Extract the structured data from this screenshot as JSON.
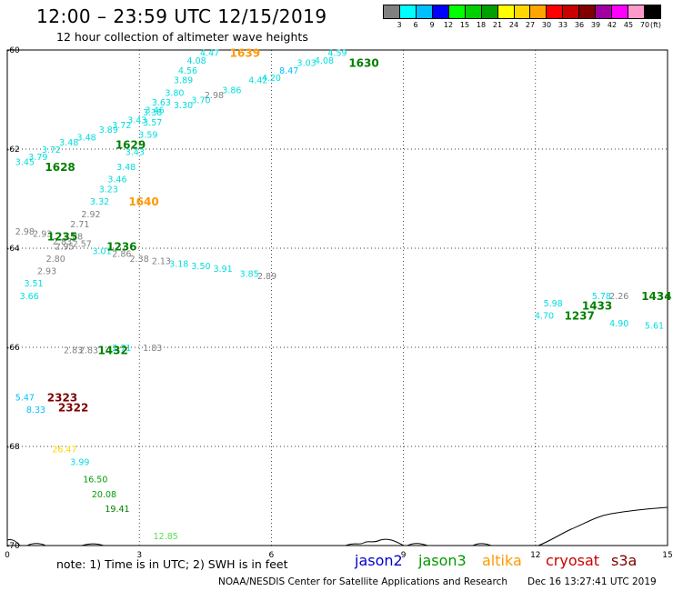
{
  "header": {
    "title": "12:00 – 23:59 UTC 12/15/2019",
    "subtitle": "12 hour collection of altimeter wave heights"
  },
  "legend": {
    "unit": "(ft)",
    "ticks": [
      "3",
      "6",
      "9",
      "12",
      "15",
      "18",
      "21",
      "24",
      "27",
      "30",
      "33",
      "36",
      "39",
      "42",
      "45",
      "70"
    ],
    "colors": [
      "#808080",
      "#00ffff",
      "#00bfff",
      "#0000ff",
      "#00ff00",
      "#00d000",
      "#00a000",
      "#ffff00",
      "#ffd700",
      "#ffa500",
      "#ff0000",
      "#c80000",
      "#800000",
      "#a000a0",
      "#ff00ff",
      "#ff99cc",
      "#000000"
    ]
  },
  "axes": {
    "x_ticks": [
      {
        "v": 0,
        "t": "0"
      },
      {
        "v": 3,
        "t": "3"
      },
      {
        "v": 6,
        "t": "6"
      },
      {
        "v": 9,
        "t": "9"
      },
      {
        "v": 12,
        "t": "12"
      },
      {
        "v": 15,
        "t": "15"
      }
    ],
    "y_ticks": [
      {
        "v": -60,
        "t": "-60"
      },
      {
        "v": -62,
        "t": "-62"
      },
      {
        "v": -64,
        "t": "-64"
      },
      {
        "v": -66,
        "t": "-66"
      },
      {
        "v": -68,
        "t": "-68"
      },
      {
        "v": -70,
        "t": "-70"
      }
    ],
    "x_range": [
      0,
      15
    ],
    "y_range": [
      -60,
      -70
    ]
  },
  "observations": [
    {
      "t": "4.47",
      "x": 4.6,
      "y": -60.05,
      "c": "#00dddd"
    },
    {
      "t": "4.08",
      "x": 4.3,
      "y": -60.2,
      "c": "#00dddd"
    },
    {
      "t": "4.56",
      "x": 4.1,
      "y": -60.4,
      "c": "#00dddd"
    },
    {
      "t": "3.89",
      "x": 4.0,
      "y": -60.6,
      "c": "#00dddd"
    },
    {
      "t": "3.80",
      "x": 3.8,
      "y": -60.85,
      "c": "#00dddd"
    },
    {
      "t": "3.63",
      "x": 3.5,
      "y": -61.05,
      "c": "#00dddd"
    },
    {
      "t": "3.30",
      "x": 4.0,
      "y": -61.1,
      "c": "#00dddd"
    },
    {
      "t": "3.70",
      "x": 4.4,
      "y": -61.0,
      "c": "#00dddd"
    },
    {
      "t": "2.98",
      "x": 4.7,
      "y": -60.9,
      "c": "#808080"
    },
    {
      "t": "3.86",
      "x": 5.1,
      "y": -60.8,
      "c": "#00dddd"
    },
    {
      "t": "4.42",
      "x": 5.7,
      "y": -60.6,
      "c": "#00dddd"
    },
    {
      "t": "4.20",
      "x": 6.0,
      "y": -60.55,
      "c": "#00dddd"
    },
    {
      "t": "8.47",
      "x": 6.4,
      "y": -60.4,
      "c": "#00bfff"
    },
    {
      "t": "3.03",
      "x": 6.8,
      "y": -60.25,
      "c": "#00dddd"
    },
    {
      "t": "4.08",
      "x": 7.2,
      "y": -60.2,
      "c": "#00dddd"
    },
    {
      "t": "4.59",
      "x": 7.5,
      "y": -60.05,
      "c": "#00dddd"
    },
    {
      "t": "3.38",
      "x": 3.3,
      "y": -61.25,
      "c": "#00dddd"
    },
    {
      "t": "3.46",
      "x": 3.35,
      "y": -61.2,
      "c": "#00dddd"
    },
    {
      "t": "3.43",
      "x": 2.95,
      "y": -61.4,
      "c": "#00dddd"
    },
    {
      "t": "3.57",
      "x": 3.3,
      "y": -61.45,
      "c": "#00dddd"
    },
    {
      "t": "3.72",
      "x": 2.6,
      "y": -61.5,
      "c": "#00dddd"
    },
    {
      "t": "3.89",
      "x": 2.3,
      "y": -61.6,
      "c": "#00dddd"
    },
    {
      "t": "3.59",
      "x": 3.2,
      "y": -61.7,
      "c": "#00dddd"
    },
    {
      "t": "3.48",
      "x": 1.8,
      "y": -61.75,
      "c": "#00dddd"
    },
    {
      "t": "3.48",
      "x": 1.4,
      "y": -61.85,
      "c": "#00dddd"
    },
    {
      "t": "3.72",
      "x": 1.0,
      "y": -62.0,
      "c": "#00dddd"
    },
    {
      "t": "3.79",
      "x": 0.7,
      "y": -62.15,
      "c": "#00dddd"
    },
    {
      "t": "3.45",
      "x": 0.4,
      "y": -62.25,
      "c": "#00dddd"
    },
    {
      "t": "3.43",
      "x": 2.9,
      "y": -62.05,
      "c": "#00dddd"
    },
    {
      "t": "3.48",
      "x": 2.7,
      "y": -62.35,
      "c": "#00dddd"
    },
    {
      "t": "3.46",
      "x": 2.5,
      "y": -62.6,
      "c": "#00dddd"
    },
    {
      "t": "3.23",
      "x": 2.3,
      "y": -62.8,
      "c": "#00dddd"
    },
    {
      "t": "3.32",
      "x": 2.1,
      "y": -63.05,
      "c": "#00dddd"
    },
    {
      "t": "2.92",
      "x": 1.9,
      "y": -63.3,
      "c": "#808080"
    },
    {
      "t": "2.71",
      "x": 1.65,
      "y": -63.5,
      "c": "#808080"
    },
    {
      "t": "2.98",
      "x": 0.4,
      "y": -63.65,
      "c": "#808080"
    },
    {
      "t": "2.93",
      "x": 0.8,
      "y": -63.7,
      "c": "#808080"
    },
    {
      "t": "2.88",
      "x": 1.5,
      "y": -63.75,
      "c": "#808080"
    },
    {
      "t": "2.83",
      "x": 1.25,
      "y": -63.85,
      "c": "#808080"
    },
    {
      "t": "2.57",
      "x": 1.7,
      "y": -63.9,
      "c": "#808080"
    },
    {
      "t": "2.95",
      "x": 1.3,
      "y": -63.95,
      "c": "#808080"
    },
    {
      "t": "3.01",
      "x": 2.15,
      "y": -64.05,
      "c": "#00dddd"
    },
    {
      "t": "2.86",
      "x": 2.6,
      "y": -64.1,
      "c": "#808080"
    },
    {
      "t": "2.80",
      "x": 1.1,
      "y": -64.2,
      "c": "#808080"
    },
    {
      "t": "2.38",
      "x": 3.0,
      "y": -64.2,
      "c": "#808080"
    },
    {
      "t": "2.13",
      "x": 3.5,
      "y": -64.25,
      "c": "#808080"
    },
    {
      "t": "3.18",
      "x": 3.9,
      "y": -64.3,
      "c": "#00dddd"
    },
    {
      "t": "3.50",
      "x": 4.4,
      "y": -64.35,
      "c": "#00dddd"
    },
    {
      "t": "3.91",
      "x": 4.9,
      "y": -64.4,
      "c": "#00dddd"
    },
    {
      "t": "3.85",
      "x": 5.5,
      "y": -64.5,
      "c": "#00dddd"
    },
    {
      "t": "2.89",
      "x": 5.9,
      "y": -64.55,
      "c": "#808080"
    },
    {
      "t": "2.93",
      "x": 0.9,
      "y": -64.45,
      "c": "#808080"
    },
    {
      "t": "3.51",
      "x": 0.6,
      "y": -64.7,
      "c": "#00dddd"
    },
    {
      "t": "3.66",
      "x": 0.5,
      "y": -64.95,
      "c": "#00dddd"
    },
    {
      "t": "2.83",
      "x": 1.5,
      "y": -66.05,
      "c": "#808080"
    },
    {
      "t": "2.83",
      "x": 1.85,
      "y": -66.05,
      "c": "#808080"
    },
    {
      "t": "2.71",
      "x": 2.6,
      "y": -66.0,
      "c": "#00dddd"
    },
    {
      "t": "1.83",
      "x": 3.3,
      "y": -66.0,
      "c": "#808080"
    },
    {
      "t": "5.47",
      "x": 0.4,
      "y": -67.0,
      "c": "#00bfff"
    },
    {
      "t": "8.33",
      "x": 0.65,
      "y": -67.25,
      "c": "#00bfff"
    },
    {
      "t": "26.47",
      "x": 1.3,
      "y": -68.05,
      "c": "#ffd700"
    },
    {
      "t": "3.99",
      "x": 1.65,
      "y": -68.3,
      "c": "#00dddd"
    },
    {
      "t": "16.50",
      "x": 2.0,
      "y": -68.65,
      "c": "#00a000"
    },
    {
      "t": "20.08",
      "x": 2.2,
      "y": -68.95,
      "c": "#00a000"
    },
    {
      "t": "19.41",
      "x": 2.5,
      "y": -69.25,
      "c": "#008000"
    },
    {
      "t": "12.85",
      "x": 3.6,
      "y": -69.8,
      "c": "#55dd55"
    },
    {
      "t": "5.98",
      "x": 12.4,
      "y": -65.1,
      "c": "#00dddd"
    },
    {
      "t": "4.70",
      "x": 12.2,
      "y": -65.35,
      "c": "#00dddd"
    },
    {
      "t": "5.78",
      "x": 13.5,
      "y": -64.95,
      "c": "#00dddd"
    },
    {
      "t": "2.26",
      "x": 13.9,
      "y": -64.95,
      "c": "#808080"
    },
    {
      "t": "4.90",
      "x": 13.9,
      "y": -65.5,
      "c": "#00dddd"
    },
    {
      "t": "5.61",
      "x": 14.7,
      "y": -65.55,
      "c": "#00dddd"
    }
  ],
  "pass_labels": [
    {
      "t": "1639",
      "x": 5.4,
      "y": -60.05,
      "c": "#ff9900"
    },
    {
      "t": "1630",
      "x": 8.1,
      "y": -60.25,
      "c": "#008000"
    },
    {
      "t": "1629",
      "x": 2.8,
      "y": -61.9,
      "c": "#008000"
    },
    {
      "t": "1628",
      "x": 1.2,
      "y": -62.35,
      "c": "#008000"
    },
    {
      "t": "1640",
      "x": 3.1,
      "y": -63.05,
      "c": "#ff9900"
    },
    {
      "t": "1235",
      "x": 1.25,
      "y": -63.75,
      "c": "#008000"
    },
    {
      "t": "1236",
      "x": 2.6,
      "y": -63.95,
      "c": "#008000"
    },
    {
      "t": "1432",
      "x": 2.4,
      "y": -66.05,
      "c": "#008000"
    },
    {
      "t": "2323",
      "x": 1.25,
      "y": -67.0,
      "c": "#800000"
    },
    {
      "t": "2322",
      "x": 1.5,
      "y": -67.2,
      "c": "#800000"
    },
    {
      "t": "1433",
      "x": 13.4,
      "y": -65.15,
      "c": "#008000"
    },
    {
      "t": "1237",
      "x": 13.0,
      "y": -65.35,
      "c": "#008000"
    },
    {
      "t": "1434",
      "x": 14.75,
      "y": -64.95,
      "c": "#008000"
    }
  ],
  "footer": {
    "note": "note: 1) Time is in UTC; 2) SWH is in feet",
    "satellites": [
      {
        "name": "jason2",
        "color": "#0000cc"
      },
      {
        "name": "jason3",
        "color": "#009900"
      },
      {
        "name": "altika",
        "color": "#ff9900"
      },
      {
        "name": "cryosat",
        "color": "#cc0000"
      },
      {
        "name": "s3a",
        "color": "#800000"
      }
    ],
    "credit": "NOAA/NESDIS Center for Satellite Applications and Research",
    "timestamp": "Dec 16 13:27:41 UTC 2019"
  }
}
